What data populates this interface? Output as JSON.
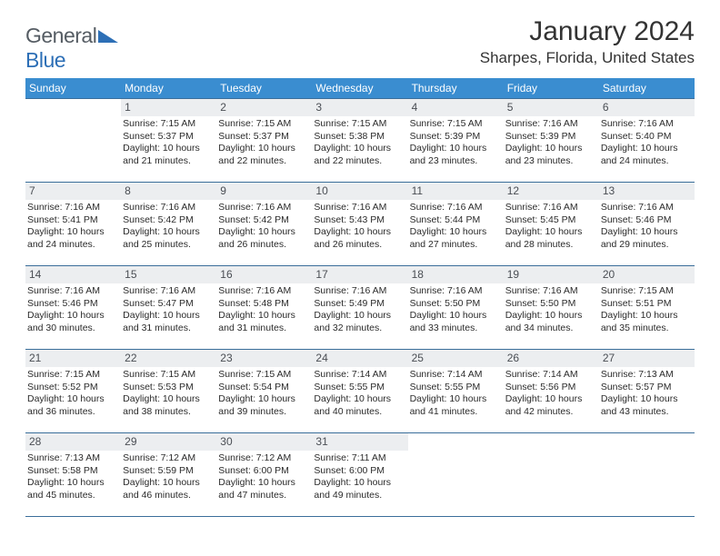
{
  "brand": {
    "word1": "General",
    "word2": "Blue"
  },
  "title": "January 2024",
  "location": "Sharpes, Florida, United States",
  "colors": {
    "header_bg": "#3a8dd0",
    "header_text": "#ffffff",
    "row_border": "#3a6e9a",
    "daynum_bg": "#eceef0",
    "daynum_text": "#4a4e54",
    "body_text": "#2b2b2b",
    "title_text": "#333333",
    "brand_gray": "#555c63",
    "brand_blue": "#2d6fb6"
  },
  "typography": {
    "title_fontsize": 30,
    "location_fontsize": 17,
    "dow_fontsize": 12,
    "daynum_fontsize": 12,
    "cell_fontsize": 10.5,
    "logo_fontsize": 23
  },
  "days_of_week": [
    "Sunday",
    "Monday",
    "Tuesday",
    "Wednesday",
    "Thursday",
    "Friday",
    "Saturday"
  ],
  "weeks": [
    [
      {
        "n": "",
        "sr": "",
        "ss": "",
        "dl": ""
      },
      {
        "n": "1",
        "sr": "Sunrise: 7:15 AM",
        "ss": "Sunset: 5:37 PM",
        "dl": "Daylight: 10 hours and 21 minutes."
      },
      {
        "n": "2",
        "sr": "Sunrise: 7:15 AM",
        "ss": "Sunset: 5:37 PM",
        "dl": "Daylight: 10 hours and 22 minutes."
      },
      {
        "n": "3",
        "sr": "Sunrise: 7:15 AM",
        "ss": "Sunset: 5:38 PM",
        "dl": "Daylight: 10 hours and 22 minutes."
      },
      {
        "n": "4",
        "sr": "Sunrise: 7:15 AM",
        "ss": "Sunset: 5:39 PM",
        "dl": "Daylight: 10 hours and 23 minutes."
      },
      {
        "n": "5",
        "sr": "Sunrise: 7:16 AM",
        "ss": "Sunset: 5:39 PM",
        "dl": "Daylight: 10 hours and 23 minutes."
      },
      {
        "n": "6",
        "sr": "Sunrise: 7:16 AM",
        "ss": "Sunset: 5:40 PM",
        "dl": "Daylight: 10 hours and 24 minutes."
      }
    ],
    [
      {
        "n": "7",
        "sr": "Sunrise: 7:16 AM",
        "ss": "Sunset: 5:41 PM",
        "dl": "Daylight: 10 hours and 24 minutes."
      },
      {
        "n": "8",
        "sr": "Sunrise: 7:16 AM",
        "ss": "Sunset: 5:42 PM",
        "dl": "Daylight: 10 hours and 25 minutes."
      },
      {
        "n": "9",
        "sr": "Sunrise: 7:16 AM",
        "ss": "Sunset: 5:42 PM",
        "dl": "Daylight: 10 hours and 26 minutes."
      },
      {
        "n": "10",
        "sr": "Sunrise: 7:16 AM",
        "ss": "Sunset: 5:43 PM",
        "dl": "Daylight: 10 hours and 26 minutes."
      },
      {
        "n": "11",
        "sr": "Sunrise: 7:16 AM",
        "ss": "Sunset: 5:44 PM",
        "dl": "Daylight: 10 hours and 27 minutes."
      },
      {
        "n": "12",
        "sr": "Sunrise: 7:16 AM",
        "ss": "Sunset: 5:45 PM",
        "dl": "Daylight: 10 hours and 28 minutes."
      },
      {
        "n": "13",
        "sr": "Sunrise: 7:16 AM",
        "ss": "Sunset: 5:46 PM",
        "dl": "Daylight: 10 hours and 29 minutes."
      }
    ],
    [
      {
        "n": "14",
        "sr": "Sunrise: 7:16 AM",
        "ss": "Sunset: 5:46 PM",
        "dl": "Daylight: 10 hours and 30 minutes."
      },
      {
        "n": "15",
        "sr": "Sunrise: 7:16 AM",
        "ss": "Sunset: 5:47 PM",
        "dl": "Daylight: 10 hours and 31 minutes."
      },
      {
        "n": "16",
        "sr": "Sunrise: 7:16 AM",
        "ss": "Sunset: 5:48 PM",
        "dl": "Daylight: 10 hours and 31 minutes."
      },
      {
        "n": "17",
        "sr": "Sunrise: 7:16 AM",
        "ss": "Sunset: 5:49 PM",
        "dl": "Daylight: 10 hours and 32 minutes."
      },
      {
        "n": "18",
        "sr": "Sunrise: 7:16 AM",
        "ss": "Sunset: 5:50 PM",
        "dl": "Daylight: 10 hours and 33 minutes."
      },
      {
        "n": "19",
        "sr": "Sunrise: 7:16 AM",
        "ss": "Sunset: 5:50 PM",
        "dl": "Daylight: 10 hours and 34 minutes."
      },
      {
        "n": "20",
        "sr": "Sunrise: 7:15 AM",
        "ss": "Sunset: 5:51 PM",
        "dl": "Daylight: 10 hours and 35 minutes."
      }
    ],
    [
      {
        "n": "21",
        "sr": "Sunrise: 7:15 AM",
        "ss": "Sunset: 5:52 PM",
        "dl": "Daylight: 10 hours and 36 minutes."
      },
      {
        "n": "22",
        "sr": "Sunrise: 7:15 AM",
        "ss": "Sunset: 5:53 PM",
        "dl": "Daylight: 10 hours and 38 minutes."
      },
      {
        "n": "23",
        "sr": "Sunrise: 7:15 AM",
        "ss": "Sunset: 5:54 PM",
        "dl": "Daylight: 10 hours and 39 minutes."
      },
      {
        "n": "24",
        "sr": "Sunrise: 7:14 AM",
        "ss": "Sunset: 5:55 PM",
        "dl": "Daylight: 10 hours and 40 minutes."
      },
      {
        "n": "25",
        "sr": "Sunrise: 7:14 AM",
        "ss": "Sunset: 5:55 PM",
        "dl": "Daylight: 10 hours and 41 minutes."
      },
      {
        "n": "26",
        "sr": "Sunrise: 7:14 AM",
        "ss": "Sunset: 5:56 PM",
        "dl": "Daylight: 10 hours and 42 minutes."
      },
      {
        "n": "27",
        "sr": "Sunrise: 7:13 AM",
        "ss": "Sunset: 5:57 PM",
        "dl": "Daylight: 10 hours and 43 minutes."
      }
    ],
    [
      {
        "n": "28",
        "sr": "Sunrise: 7:13 AM",
        "ss": "Sunset: 5:58 PM",
        "dl": "Daylight: 10 hours and 45 minutes."
      },
      {
        "n": "29",
        "sr": "Sunrise: 7:12 AM",
        "ss": "Sunset: 5:59 PM",
        "dl": "Daylight: 10 hours and 46 minutes."
      },
      {
        "n": "30",
        "sr": "Sunrise: 7:12 AM",
        "ss": "Sunset: 6:00 PM",
        "dl": "Daylight: 10 hours and 47 minutes."
      },
      {
        "n": "31",
        "sr": "Sunrise: 7:11 AM",
        "ss": "Sunset: 6:00 PM",
        "dl": "Daylight: 10 hours and 49 minutes."
      },
      {
        "n": "",
        "sr": "",
        "ss": "",
        "dl": ""
      },
      {
        "n": "",
        "sr": "",
        "ss": "",
        "dl": ""
      },
      {
        "n": "",
        "sr": "",
        "ss": "",
        "dl": ""
      }
    ]
  ]
}
